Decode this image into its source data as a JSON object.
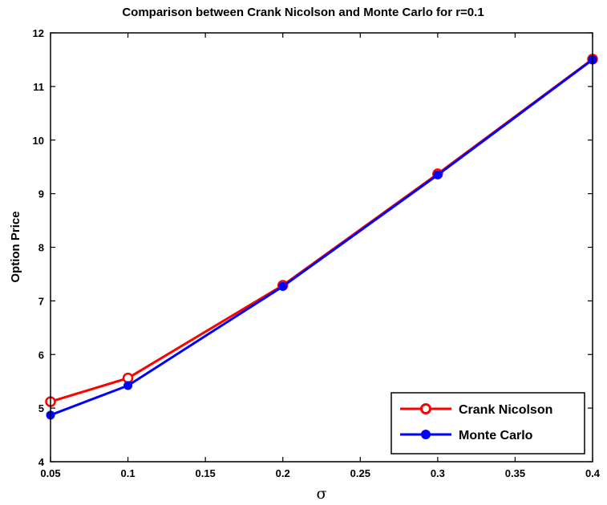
{
  "chart_data": {
    "type": "line",
    "title": "Comparison between Crank Nicolson and Monte Carlo for r=0.1",
    "xlabel": "σ",
    "ylabel": "Option Price",
    "x": [
      0.05,
      0.1,
      0.2,
      0.3,
      0.4
    ],
    "xlim": [
      0.05,
      0.4
    ],
    "ylim": [
      4,
      12
    ],
    "xticks": [
      "0.05",
      "0.1",
      "0.15",
      "0.2",
      "0.25",
      "0.3",
      "0.35",
      "0.4"
    ],
    "yticks": [
      "4",
      "5",
      "6",
      "7",
      "8",
      "9",
      "10",
      "11",
      "12"
    ],
    "grid": false,
    "legend_position": "bottom-right",
    "series": [
      {
        "name": "Crank Nicolson",
        "values": [
          5.12,
          5.56,
          7.29,
          9.37,
          11.51
        ],
        "color": "#ff0000",
        "marker": "open-circle"
      },
      {
        "name": "Monte Carlo",
        "values": [
          4.87,
          5.42,
          7.27,
          9.35,
          11.5
        ],
        "color": "#0000ff",
        "marker": "filled-circle"
      }
    ]
  }
}
